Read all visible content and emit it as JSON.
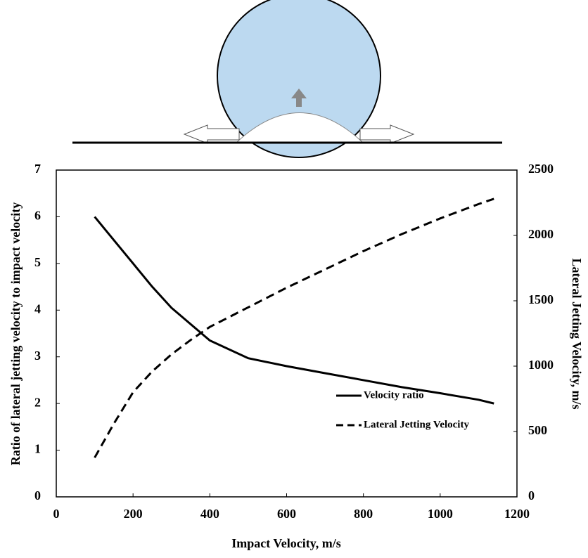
{
  "chart_data": {
    "type": "line",
    "x_label": "Impact Velocity, m/s",
    "y_label": "Ratio of lateral jetting velocity to impact velocity",
    "y2_label": "Lateral Jetting Velocity, m/s",
    "x": [
      100,
      150,
      200,
      250,
      300,
      350,
      400,
      500,
      600,
      700,
      800,
      900,
      1000,
      1100,
      1140
    ],
    "series": [
      {
        "name": "Velocity ratio",
        "color": "#000000",
        "line_style": "solid",
        "values": [
          6.0,
          5.5,
          5.0,
          4.5,
          4.05,
          3.7,
          3.35,
          2.97,
          2.8,
          2.65,
          2.5,
          2.35,
          2.22,
          2.08,
          2.0
        ]
      },
      {
        "name": "Lateral Jetting Velocity",
        "color": "#000000",
        "line_style": "dashed",
        "axis": "y2",
        "values": [
          300,
          560,
          800,
          960,
          1090,
          1200,
          1300,
          1450,
          1600,
          1740,
          1880,
          2010,
          2130,
          2240,
          2280
        ]
      }
    ],
    "xlim": [
      0,
      1200
    ],
    "xticks": [
      0,
      200,
      400,
      600,
      800,
      1000,
      1200
    ],
    "ylim": [
      0,
      7
    ],
    "yticks": [
      0,
      1,
      2,
      3,
      4,
      5,
      6,
      7
    ],
    "y2lim": [
      0,
      2500
    ],
    "y2ticks": [
      0,
      500,
      1000,
      1500,
      2000,
      2500
    ],
    "grid": false
  }
}
